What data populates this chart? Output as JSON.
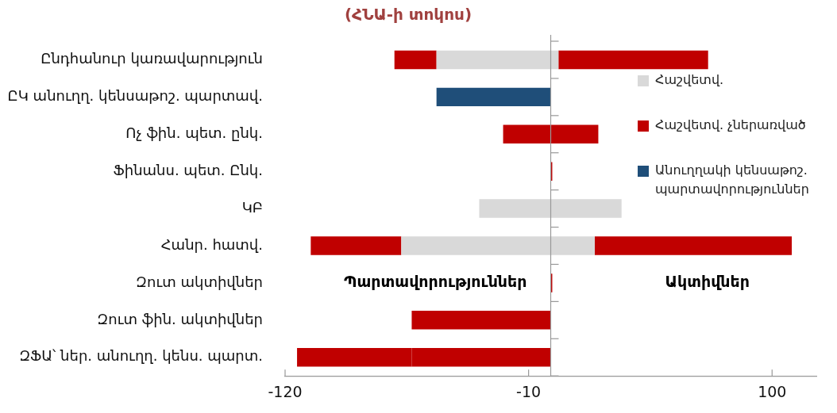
{
  "chart_data": {
    "type": "bar",
    "orientation": "horizontal",
    "stacked": true,
    "title": "(ՀՆԱ-ի տոկոս)",
    "categories": [
      "Ընդհանուր կառավարություն",
      "ԸԿ անուղղ. կենսաթոշ. պարտավ.",
      "Ոչ ֆին. պետ. ընկ.",
      "Ֆինանս. պետ. Ընկ.",
      "ԿԲ",
      "Հանր. հատվ.",
      "Զուտ ակտիվներ",
      "Զուտ ֆին. ակտիվներ",
      "ԶՖԱ՝ ներ. անուղղ. կենս. պարտ."
    ],
    "series": [
      {
        "name": "Հաշվետվ.",
        "color": "#d9d9d9",
        "values": [
          -51.6,
          null,
          null,
          null,
          -32.3,
          -67.5,
          null,
          null,
          null
        ]
      },
      {
        "color": "#d9d9d9",
        "values": [
          3.5,
          null,
          null,
          null,
          32,
          19.9,
          null,
          null,
          null
        ]
      },
      {
        "name": "Հաշվետվ. չներառված",
        "color": "#c00000",
        "values": [
          -19,
          null,
          -21.5,
          null,
          null,
          -40.9,
          null,
          -62.8,
          -62.8
        ]
      },
      {
        "color": "#c00000",
        "values": [
          67.6,
          null,
          21.5,
          0.7,
          null,
          89,
          0.7,
          null,
          null
        ]
      },
      {
        "name": "Անուղղակի կենսաթոշ. պարտավորություններ",
        "color": "#1f4e79",
        "values": [
          null,
          -51.6,
          null,
          null,
          null,
          null,
          null,
          null,
          null
        ]
      },
      {
        "color": "#c00000",
        "values": [
          null,
          null,
          null,
          null,
          null,
          null,
          null,
          null,
          -51.8
        ]
      }
    ],
    "xlim": [
      -120,
      120
    ],
    "xticks": [
      -120,
      -10,
      100
    ],
    "legend": "right",
    "annotations": [
      "Պարտավորություններ",
      "Ակտիվներ"
    ]
  }
}
